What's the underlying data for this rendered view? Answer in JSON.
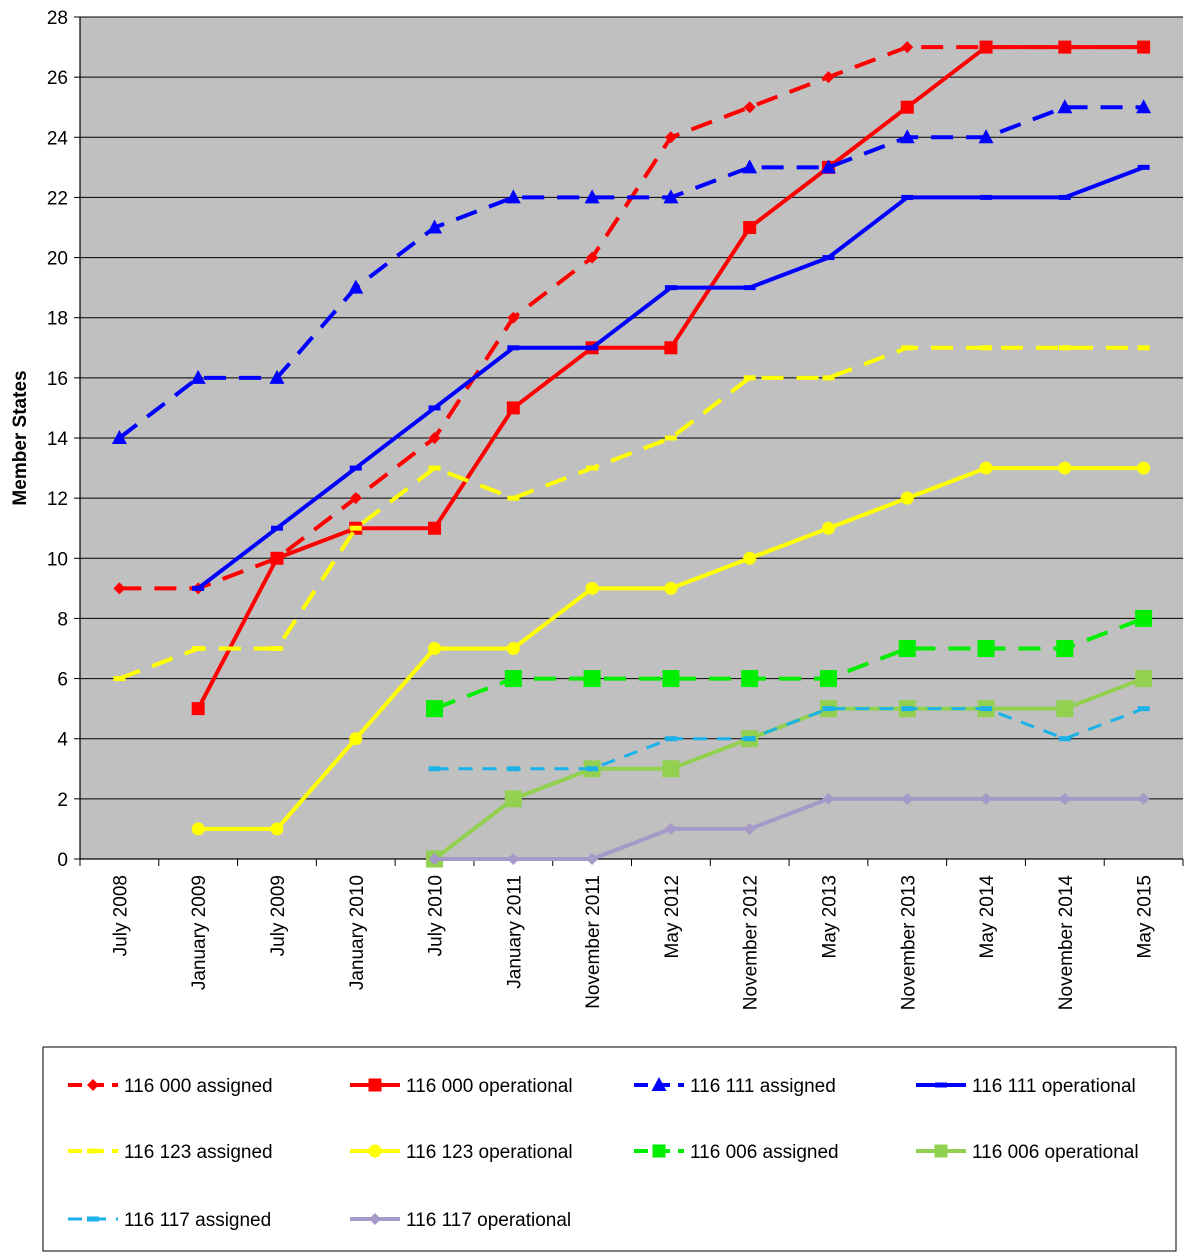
{
  "chart_data": {
    "type": "line",
    "title": "",
    "xlabel": "",
    "ylabel": "Member States",
    "ylim": [
      0,
      28
    ],
    "ytick_step": 2,
    "grid": true,
    "plot_background": "#c0c0c0",
    "legend_placement": "bottom",
    "categories": [
      "July 2008",
      "January 2009",
      "July 2009",
      "January 2010",
      "July 2010",
      "January 2011",
      "November 2011",
      "May 2012",
      "November 2012",
      "May 2013",
      "November 2013",
      "May 2014",
      "November 2014",
      "May 2015"
    ],
    "series": [
      {
        "name": "116 000 assigned",
        "color": "#ff0000",
        "dash": "dashed",
        "marker": "diamond",
        "values": [
          9,
          9,
          10,
          12,
          14,
          18,
          20,
          24,
          25,
          26,
          27,
          27,
          27,
          27
        ]
      },
      {
        "name": "116 000 operational",
        "color": "#ff0000",
        "dash": "solid",
        "marker": "square",
        "values": [
          null,
          5,
          10,
          11,
          11,
          15,
          17,
          17,
          21,
          23,
          25,
          27,
          27,
          27
        ]
      },
      {
        "name": "116 111 assigned",
        "color": "#0000ff",
        "dash": "dashed",
        "marker": "triangle",
        "values": [
          14,
          16,
          16,
          19,
          21,
          22,
          22,
          22,
          23,
          23,
          24,
          24,
          25,
          25
        ]
      },
      {
        "name": "116 111 operational",
        "color": "#0000ff",
        "dash": "solid",
        "marker": "dash",
        "values": [
          null,
          9,
          11,
          13,
          15,
          17,
          17,
          19,
          19,
          20,
          22,
          22,
          22,
          23
        ]
      },
      {
        "name": "116 123 assigned",
        "color": "#ffff00",
        "dash": "dashed",
        "marker": "dash",
        "values": [
          6,
          7,
          7,
          11,
          13,
          12,
          13,
          14,
          16,
          16,
          17,
          17,
          17,
          17
        ]
      },
      {
        "name": "116 123 operational",
        "color": "#ffff00",
        "dash": "solid",
        "marker": "circle",
        "values": [
          null,
          1,
          1,
          4,
          7,
          7,
          9,
          9,
          10,
          11,
          12,
          13,
          13,
          13
        ]
      },
      {
        "name": "116 006 assigned",
        "color": "#00ee00",
        "dash": "dashed",
        "marker": "square",
        "values": [
          null,
          null,
          null,
          null,
          5,
          6,
          6,
          6,
          6,
          6,
          7,
          7,
          7,
          8
        ]
      },
      {
        "name": "116 006 operational",
        "color": "#92d050",
        "dash": "solid",
        "marker": "square",
        "values": [
          null,
          null,
          null,
          null,
          0,
          2,
          3,
          3,
          4,
          5,
          5,
          5,
          5,
          6
        ]
      },
      {
        "name": "116 117 assigned",
        "color": "#1ab2e8",
        "dash": "dashed-thin",
        "marker": "dash",
        "values": [
          null,
          null,
          null,
          null,
          3,
          3,
          3,
          4,
          4,
          5,
          5,
          5,
          4,
          5
        ]
      },
      {
        "name": "116 117 operational",
        "color": "#a599c8",
        "dash": "solid",
        "marker": "diamond",
        "values": [
          null,
          null,
          null,
          null,
          0,
          0,
          0,
          1,
          1,
          2,
          2,
          2,
          2,
          2
        ]
      }
    ]
  }
}
